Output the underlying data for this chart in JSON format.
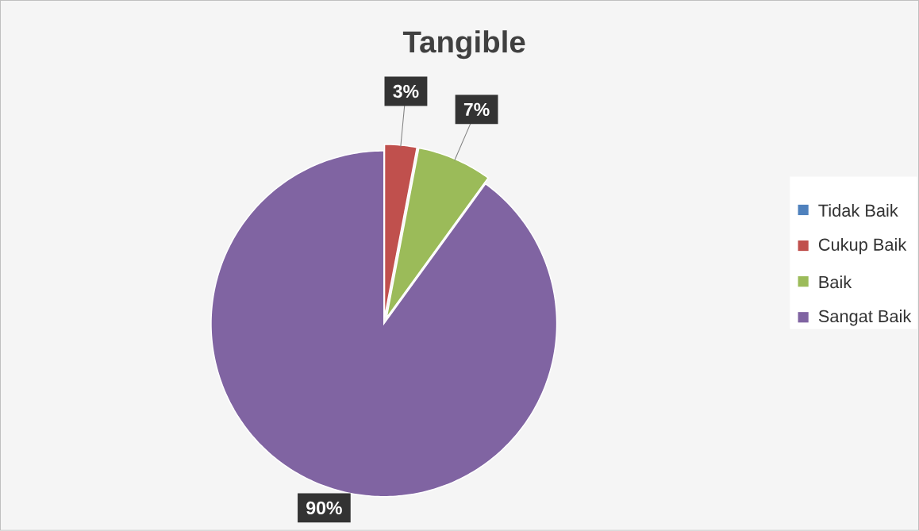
{
  "chart_data": {
    "type": "pie",
    "title": "Tangible",
    "categories": [
      "Tidak Baik",
      "Cukup Baik",
      "Baik",
      "Sangat Baik"
    ],
    "values": [
      0,
      3,
      7,
      90
    ],
    "colors": [
      "#4f81bd",
      "#c0504d",
      "#9bbb59",
      "#8064a2"
    ],
    "value_labels": [
      null,
      "3%",
      "7%",
      "90%"
    ],
    "legend": "right"
  }
}
